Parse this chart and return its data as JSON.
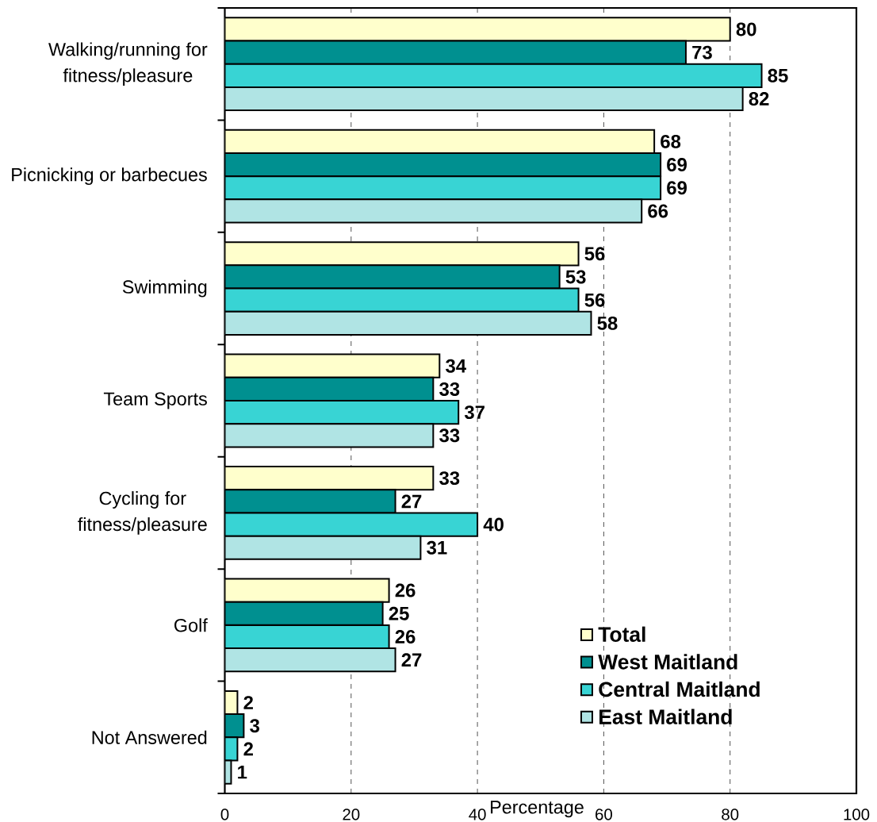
{
  "chart_data": {
    "type": "bar",
    "orientation": "horizontal",
    "xlabel": "Percentage",
    "categories": [
      "Walking/running for fitness/pleasure",
      "Picnicking or barbecues",
      "Swimming",
      "Team Sports",
      "Cycling for fitness/pleasure",
      "Golf",
      "Not Answered"
    ],
    "series": [
      {
        "name": "Total",
        "color": "#ffffcc",
        "values": [
          80,
          68,
          56,
          34,
          33,
          26,
          2
        ]
      },
      {
        "name": "West Maitland",
        "color": "#009090",
        "values": [
          73,
          69,
          53,
          33,
          27,
          25,
          3
        ]
      },
      {
        "name": "Central Maitland",
        "color": "#38d4d4",
        "values": [
          85,
          69,
          56,
          37,
          40,
          26,
          2
        ]
      },
      {
        "name": "East Maitland",
        "color": "#b0e4e4",
        "values": [
          82,
          66,
          58,
          33,
          31,
          27,
          1
        ]
      }
    ],
    "xlim": [
      0,
      100
    ],
    "xticks": [
      0,
      20,
      40,
      60,
      80,
      100
    ],
    "grid": "x",
    "legend": "bottom right",
    "data_labels": true
  }
}
